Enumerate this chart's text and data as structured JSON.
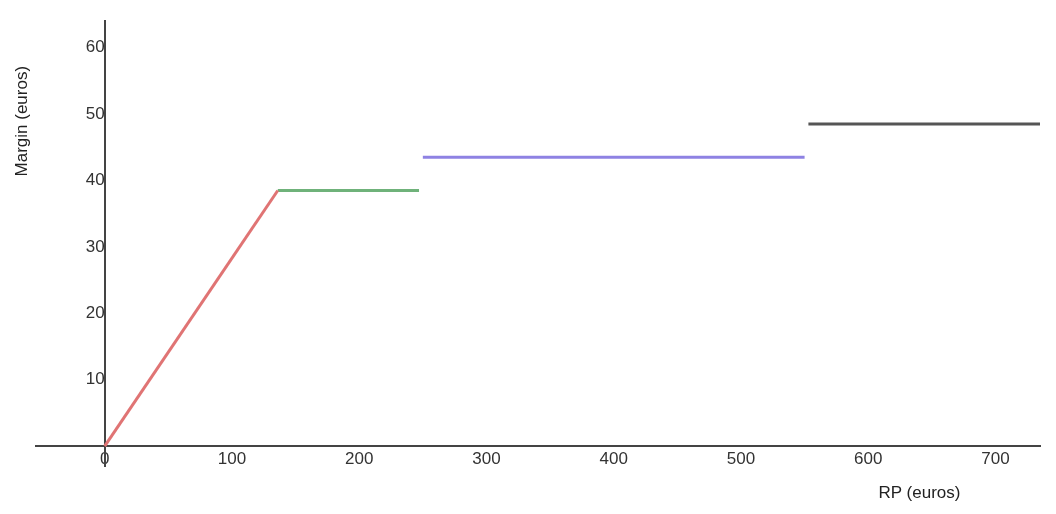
{
  "chart_data": {
    "type": "line",
    "xlabel": "RP (euros)",
    "ylabel": "Margin (euros)",
    "series": [
      {
        "color": "#e07474",
        "x": [
          0,
          136
        ],
        "values": [
          0,
          38.5
        ]
      },
      {
        "color": "#6fb27a",
        "x": [
          136,
          247
        ],
        "values": [
          38.5,
          38.5
        ]
      },
      {
        "color": "#8e82e3",
        "x": [
          250,
          550
        ],
        "values": [
          43.5,
          43.5
        ]
      },
      {
        "color": "#555555",
        "x": [
          553,
          735
        ],
        "values": [
          48.5,
          48.5
        ]
      }
    ],
    "xlim": [
      -54,
      735
    ],
    "ylim": [
      -3,
      64
    ],
    "xticks": [
      0,
      100,
      200,
      300,
      400,
      500,
      600,
      700
    ],
    "yticks": [
      10,
      20,
      30,
      40,
      50,
      60
    ],
    "grid": false,
    "legend": false,
    "marker": "none",
    "line_style": "solid"
  }
}
